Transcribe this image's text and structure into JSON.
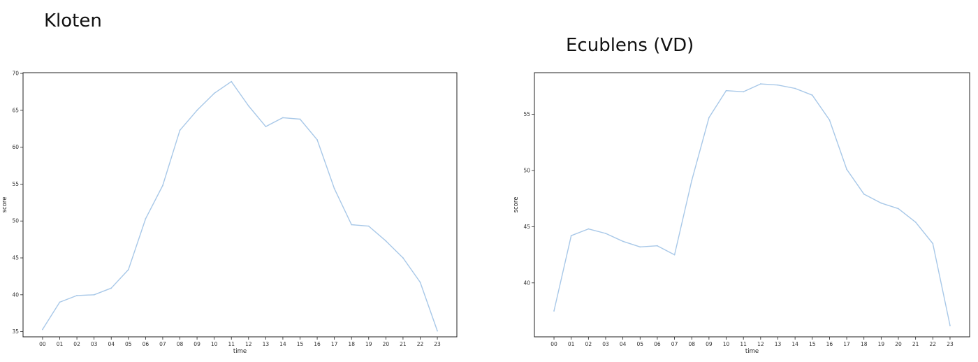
{
  "chart_data": [
    {
      "type": "line",
      "title": "Kloten",
      "xlabel": "time",
      "ylabel": "score",
      "categories": [
        "00",
        "01",
        "02",
        "03",
        "04",
        "05",
        "06",
        "07",
        "08",
        "09",
        "10",
        "11",
        "12",
        "13",
        "14",
        "15",
        "16",
        "17",
        "18",
        "19",
        "20",
        "21",
        "22",
        "23"
      ],
      "series": [
        {
          "values": [
            35.3,
            39.0,
            39.9,
            40.0,
            40.9,
            43.4,
            50.3,
            54.8,
            62.3,
            65.0,
            67.3,
            68.9,
            65.6,
            62.8,
            64.0,
            63.8,
            61.0,
            54.4,
            49.5,
            49.3,
            47.3,
            45.0,
            41.7,
            35.1
          ],
          "color": "#a8c8e8"
        }
      ],
      "yticks": [
        35,
        40,
        45,
        50,
        55,
        60,
        65,
        70
      ],
      "ylim": [
        34.3,
        70.1
      ],
      "grid": false
    },
    {
      "type": "line",
      "title": "Ecublens (VD)",
      "xlabel": "time",
      "ylabel": "score",
      "categories": [
        "00",
        "01",
        "02",
        "03",
        "04",
        "05",
        "06",
        "07",
        "08",
        "09",
        "10",
        "11",
        "12",
        "13",
        "14",
        "15",
        "16",
        "17",
        "18",
        "19",
        "20",
        "21",
        "22",
        "23"
      ],
      "series": [
        {
          "values": [
            37.5,
            44.2,
            44.8,
            44.4,
            43.7,
            43.2,
            43.3,
            42.5,
            49.1,
            54.7,
            57.1,
            57.0,
            57.7,
            57.6,
            57.3,
            56.7,
            54.5,
            50.1,
            47.9,
            47.1,
            46.6,
            45.4,
            43.5,
            36.2
          ],
          "color": "#a8c8e8"
        }
      ],
      "yticks": [
        40,
        45,
        50,
        55
      ],
      "ylim": [
        35.2,
        58.7
      ],
      "grid": false
    }
  ]
}
